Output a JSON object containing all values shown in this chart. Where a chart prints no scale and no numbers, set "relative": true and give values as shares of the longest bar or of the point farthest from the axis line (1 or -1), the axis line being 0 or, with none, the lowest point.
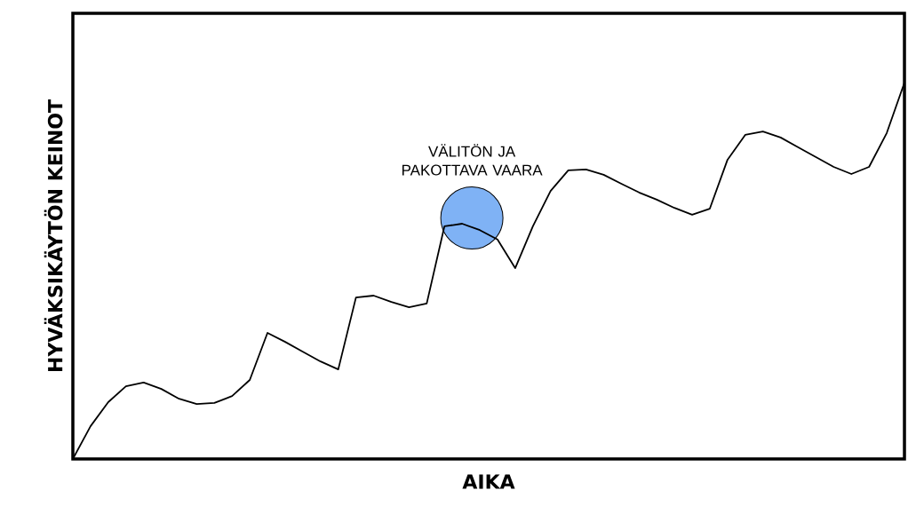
{
  "chart_data": {
    "type": "line",
    "relative": true,
    "xlabel": "AIKA",
    "ylabel": "HYVÄKSIKÄYTÖN KEINOT",
    "annotations": [
      "VÄLITÖN JA PAKOTTAVA VAARA"
    ],
    "categories": [
      null,
      null,
      null,
      null,
      null,
      null,
      null,
      null,
      null,
      null,
      null,
      null,
      null,
      null,
      null,
      null,
      null,
      null,
      null,
      null,
      null,
      null,
      null,
      null,
      null,
      null,
      null,
      null,
      null,
      null,
      null,
      null,
      null,
      null,
      null,
      null,
      null,
      null,
      null,
      null,
      null,
      null,
      null,
      null,
      null,
      null,
      null,
      null
    ],
    "series": [
      {
        "color": "#000000",
        "values": [
          0,
          0.087,
          0.151,
          0.193,
          0.203,
          0.186,
          0.16,
          0.146,
          0.149,
          0.167,
          0.21,
          0.335,
          0.311,
          0.285,
          0.259,
          0.238,
          0.429,
          0.434,
          0.417,
          0.403,
          0.413,
          0.618,
          0.625,
          0.608,
          0.583,
          0.507,
          0.618,
          0.712,
          0.767,
          0.769,
          0.755,
          0.731,
          0.708,
          0.689,
          0.667,
          0.649,
          0.665,
          0.795,
          0.861,
          0.87,
          0.854,
          0.828,
          0.802,
          0.776,
          0.757,
          0.776,
          0.866,
          1
        ]
      }
    ]
  }
}
